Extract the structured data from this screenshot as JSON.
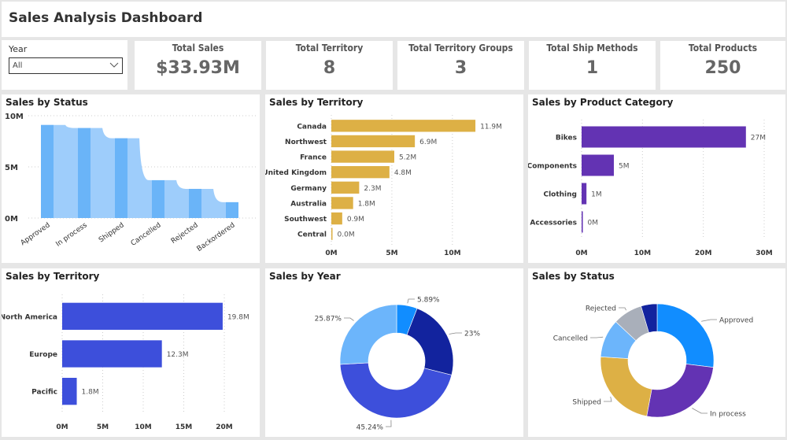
{
  "header": {
    "title": "Sales Analysis Dashboard"
  },
  "slicer": {
    "label": "Year",
    "value": "All"
  },
  "cards": [
    {
      "title": "Total Sales",
      "value": "$33.93M"
    },
    {
      "title": "Total Territory",
      "value": "8"
    },
    {
      "title": "Total Territory Groups",
      "value": "3"
    },
    {
      "title": "Total Ship Methods",
      "value": "1"
    },
    {
      "title": "Total Products",
      "value": "250"
    }
  ],
  "chart_data": [
    {
      "id": "status_waterfall",
      "type": "bar",
      "title": "Sales by Status",
      "categories": [
        "Approved",
        "In process",
        "Shipped",
        "Cancelled",
        "Rejected",
        "Backordered"
      ],
      "values": [
        9.1,
        8.8,
        7.8,
        3.7,
        2.85,
        1.55
      ],
      "unit": "M",
      "yticks": [
        "0M",
        "5M",
        "10M"
      ],
      "ylim": [
        0,
        10
      ],
      "grid": true,
      "colors": {
        "bar": "#6AB4F8",
        "ribbon": "#9ECDFB"
      }
    },
    {
      "id": "territory_bar",
      "type": "bar",
      "orientation": "horizontal",
      "title": "Sales by Territory",
      "categories": [
        "Canada",
        "Northwest",
        "France",
        "United Kingdom",
        "Germany",
        "Australia",
        "Southwest",
        "Central"
      ],
      "values": [
        11.9,
        6.9,
        5.2,
        4.8,
        2.3,
        1.8,
        0.9,
        0.0
      ],
      "labels": [
        "11.9M",
        "6.9M",
        "5.2M",
        "4.8M",
        "2.3M",
        "1.8M",
        "0.9M",
        "0.0M"
      ],
      "xticks": [
        "0M",
        "5M",
        "10M"
      ],
      "xlim": [
        0,
        13
      ],
      "grid": true,
      "color": "#DDB045"
    },
    {
      "id": "category_bar",
      "type": "bar",
      "orientation": "horizontal",
      "title": "Sales by Product Category",
      "categories": [
        "Bikes",
        "Components",
        "Clothing",
        "Accessories"
      ],
      "values": [
        27,
        5.3,
        0.8,
        0.2
      ],
      "labels": [
        "27M",
        "5M",
        "1M",
        "0M"
      ],
      "xticks": [
        "0M",
        "10M",
        "20M",
        "30M"
      ],
      "xlim": [
        0,
        30
      ],
      "grid": true,
      "color": "#6333B3"
    },
    {
      "id": "group_bar",
      "type": "bar",
      "orientation": "horizontal",
      "title": "Sales by Territory",
      "categories": [
        "North America",
        "Europe",
        "Pacific"
      ],
      "values": [
        19.8,
        12.3,
        1.8
      ],
      "labels": [
        "19.8M",
        "12.3M",
        "1.8M"
      ],
      "xticks": [
        "0M",
        "5M",
        "10M",
        "15M",
        "20M"
      ],
      "xlim": [
        0,
        20
      ],
      "grid": true,
      "color": "#3D4FDB"
    },
    {
      "id": "year_donut",
      "type": "pie",
      "title": "Sales by Year",
      "slices": [
        {
          "label": "5.89%",
          "value": 5.89,
          "color": "#118DFF"
        },
        {
          "label": "23%",
          "value": 23.0,
          "color": "#12239E"
        },
        {
          "label": "45.24%",
          "value": 45.24,
          "color": "#3D4FDB"
        },
        {
          "label": "25.87%",
          "value": 25.87,
          "color": "#6CB5FB"
        }
      ]
    },
    {
      "id": "status_donut",
      "type": "pie",
      "title": "Sales by Status",
      "slices": [
        {
          "label": "Approved",
          "value": 9.1,
          "color": "#118DFF"
        },
        {
          "label": "In process",
          "value": 8.8,
          "color": "#6333B3"
        },
        {
          "label": "Shipped",
          "value": 7.8,
          "color": "#DDB045"
        },
        {
          "label": "Cancelled",
          "value": 3.7,
          "color": "#6CB5FB"
        },
        {
          "label": "Rejected",
          "value": 2.85,
          "color": "#A9AFBA"
        },
        {
          "label": "Backordered",
          "value": 1.55,
          "color": "#12239E"
        }
      ]
    }
  ]
}
